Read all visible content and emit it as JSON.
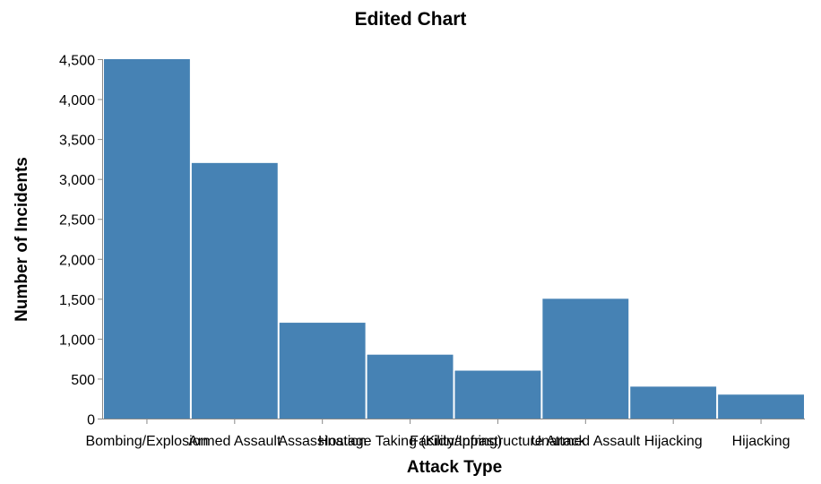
{
  "chart_data": {
    "type": "bar",
    "title": "Edited Chart",
    "xlabel": "Attack Type",
    "ylabel": "Number of Incidents",
    "categories": [
      "Bombing/Explosion",
      "Armed Assault",
      "Assassination",
      "Hostage Taking (Kidnapping)",
      "Facility/Infrastructure Attack",
      "Unarmed Assault",
      "Hijacking",
      "Hijacking"
    ],
    "values": [
      4500,
      3200,
      1200,
      800,
      600,
      1500,
      400,
      300
    ],
    "ylim": [
      0,
      4500
    ],
    "yticks": [
      0,
      500,
      1000,
      1500,
      2000,
      2500,
      3000,
      3500,
      4000,
      4500
    ],
    "ytick_labels": [
      "0",
      "500",
      "1,000",
      "1,500",
      "2,000",
      "2,500",
      "3,000",
      "3,500",
      "4,000",
      "4,500"
    ],
    "bar_color": "#4682b4",
    "grid": false,
    "legend": "none"
  }
}
